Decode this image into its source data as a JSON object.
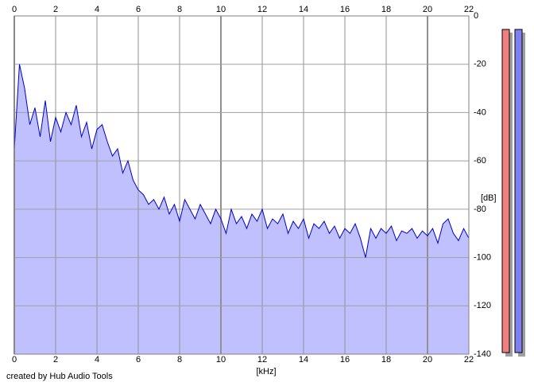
{
  "chart_data": {
    "type": "area",
    "x_label": "[kHz]",
    "y_label": "[dB]",
    "footer": "created by Hub Audio Tools",
    "x": [
      0,
      0.25,
      0.5,
      0.75,
      1,
      1.25,
      1.5,
      1.75,
      2,
      2.25,
      2.5,
      2.75,
      3,
      3.25,
      3.5,
      3.75,
      4,
      4.25,
      4.5,
      4.75,
      5,
      5.25,
      5.5,
      5.75,
      6,
      6.25,
      6.5,
      6.75,
      7,
      7.25,
      7.5,
      7.75,
      8,
      8.25,
      8.5,
      8.75,
      9,
      9.25,
      9.5,
      9.75,
      10,
      10.25,
      10.5,
      10.75,
      11,
      11.25,
      11.5,
      11.75,
      12,
      12.25,
      12.5,
      12.75,
      13,
      13.25,
      13.5,
      13.75,
      14,
      14.25,
      14.5,
      14.75,
      15,
      15.25,
      15.5,
      15.75,
      16,
      16.25,
      16.5,
      16.75,
      17,
      17.25,
      17.5,
      17.75,
      18,
      18.25,
      18.5,
      18.75,
      19,
      19.25,
      19.5,
      19.75,
      20,
      20.25,
      20.5,
      20.75,
      21,
      21.25,
      21.5,
      21.75,
      22
    ],
    "series": [
      {
        "line_color": "#0000cc",
        "fill_color": "#c0c0ff",
        "values": [
          -55,
          -20,
          -30,
          -45,
          -38,
          -50,
          -35,
          -52,
          -42,
          -48,
          -40,
          -45,
          -37,
          -50,
          -44,
          -55,
          -47,
          -45,
          -52,
          -58,
          -55,
          -65,
          -60,
          -68,
          -72,
          -74,
          -78,
          -76,
          -80,
          -75,
          -82,
          -78,
          -85,
          -76,
          -80,
          -84,
          -78,
          -82,
          -86,
          -80,
          -84,
          -90,
          -80,
          -86,
          -83,
          -88,
          -82,
          -85,
          -80,
          -88,
          -84,
          -86,
          -82,
          -90,
          -85,
          -88,
          -84,
          -92,
          -86,
          -88,
          -85,
          -90,
          -87,
          -92,
          -88,
          -90,
          -86,
          -92,
          -100,
          -88,
          -92,
          -88,
          -90,
          -87,
          -93,
          -89,
          -90,
          -88,
          -92,
          -89,
          -91,
          -88,
          -94,
          -86,
          -84,
          -90,
          -93,
          -88,
          -92
        ]
      }
    ],
    "xlim": [
      0,
      22
    ],
    "xticks": [
      0,
      2,
      4,
      6,
      8,
      10,
      12,
      14,
      16,
      18,
      20,
      22
    ],
    "ylim": [
      -140,
      0
    ],
    "yticks": [
      0,
      -20,
      -40,
      -60,
      -80,
      -100,
      -120,
      -140
    ],
    "grid": true
  }
}
